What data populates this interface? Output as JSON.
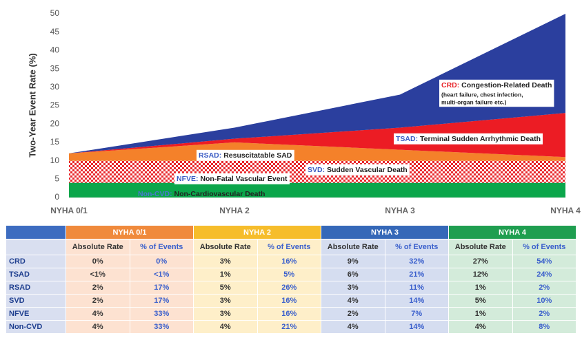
{
  "chart_data": {
    "type": "stacked_area",
    "y_label": "Two-Year Event Rate (%)",
    "categories": [
      "NYHA 0/1",
      "NYHA 2",
      "NYHA 3",
      "NYHA 4"
    ],
    "ylim": [
      0,
      50
    ],
    "yticks": [
      0,
      5,
      10,
      15,
      20,
      25,
      30,
      35,
      40,
      45,
      50
    ],
    "grid": false,
    "series": [
      {
        "name": "Non-CVD",
        "label": "Non-Cardiovascular Death",
        "color": "#0ba64b",
        "name_color": "#4a78d0",
        "values": [
          4,
          4,
          4,
          4
        ]
      },
      {
        "name": "NFVE",
        "label": "Non-Fatal Vascular Event",
        "color": "#e8262b",
        "pattern": "checker",
        "name_color": "#3a5cc4",
        "values": [
          4,
          3,
          2,
          1
        ]
      },
      {
        "name": "SVD",
        "label": "Sudden Vascular Death",
        "color": "#e8262b",
        "pattern": "checker",
        "name_color": "#3a5cc4",
        "values": [
          2,
          3,
          4,
          5
        ]
      },
      {
        "name": "RSAD",
        "label": "Resuscitatable SAD",
        "color": "#f4812a",
        "name_color": "#3a5cc4",
        "values": [
          2,
          5,
          3,
          1
        ]
      },
      {
        "name": "TSAD",
        "label": "Terminal Sudden Arrhythmic Death",
        "color": "#ec1c24",
        "name_color": "#3a5cc4",
        "values": [
          0,
          1,
          6,
          12
        ]
      },
      {
        "name": "CRD",
        "label": "Congestion-Related Death",
        "color": "#2b3f9e",
        "name_color": "#e8262b",
        "note": [
          "(heart failure, chest infection,",
          "multi-organ failure etc.)"
        ],
        "values": [
          0,
          3,
          9,
          27
        ]
      }
    ]
  },
  "table": {
    "groups": [
      {
        "name": "NYHA 0/1",
        "color": "#f08a3c",
        "tint": "#fde2d1"
      },
      {
        "name": "NYHA 2",
        "color": "#f6bd2b",
        "tint": "#feefc9"
      },
      {
        "name": "NYHA 3",
        "color": "#3568b8",
        "tint": "#d5ddf0"
      },
      {
        "name": "NYHA 4",
        "color": "#1f9e50",
        "tint": "#d3ebda"
      }
    ],
    "subheaders": [
      "Absolute Rate",
      "% of Events"
    ],
    "rows": [
      {
        "label": "CRD",
        "cells": [
          "0%",
          "0%",
          "3%",
          "16%",
          "9%",
          "32%",
          "27%",
          "54%"
        ]
      },
      {
        "label": "TSAD",
        "cells": [
          "<1%",
          "<1%",
          "1%",
          "5%",
          "6%",
          "21%",
          "12%",
          "24%"
        ]
      },
      {
        "label": "RSAD",
        "cells": [
          "2%",
          "17%",
          "5%",
          "26%",
          "3%",
          "11%",
          "1%",
          "2%"
        ]
      },
      {
        "label": "SVD",
        "cells": [
          "2%",
          "17%",
          "3%",
          "16%",
          "4%",
          "14%",
          "5%",
          "10%"
        ]
      },
      {
        "label": "NFVE",
        "cells": [
          "4%",
          "33%",
          "3%",
          "16%",
          "2%",
          "7%",
          "1%",
          "2%"
        ]
      },
      {
        "label": "Non-CVD",
        "cells": [
          "4%",
          "33%",
          "4%",
          "21%",
          "4%",
          "14%",
          "4%",
          "8%"
        ]
      }
    ]
  }
}
